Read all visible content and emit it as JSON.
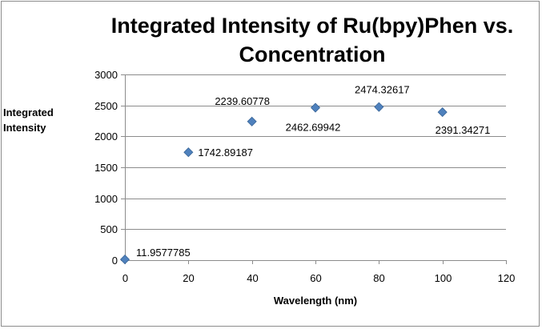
{
  "chart_data": {
    "type": "scatter",
    "title": "Integrated Intensity of Ru(bpy)Phen vs. Concentration",
    "xlabel": "Wavelength (nm)",
    "ylabel": "Integrated\nIntensity",
    "xlim": [
      0,
      120
    ],
    "ylim": [
      0,
      3000
    ],
    "x_ticks": [
      0,
      20,
      40,
      60,
      80,
      100,
      120
    ],
    "y_ticks": [
      0,
      500,
      1000,
      1500,
      2000,
      2500,
      3000
    ],
    "grid": "horizontal",
    "marker": "diamond",
    "series": [
      {
        "x": [
          0,
          20,
          40,
          60,
          80,
          100
        ],
        "y": [
          11.9577785,
          1742.89187,
          2239.60778,
          2462.69942,
          2474.32617,
          2391.34271
        ],
        "labels": [
          "11.9577785",
          "1742.89187",
          "2239.60778",
          "2462.69942",
          "2474.32617",
          "2391.34271"
        ]
      }
    ],
    "colors": {
      "marker": "#4f81bd",
      "marker_edge": "#3a6698",
      "grid": "#8c8c8c",
      "axis": "#8c8c8c"
    }
  }
}
